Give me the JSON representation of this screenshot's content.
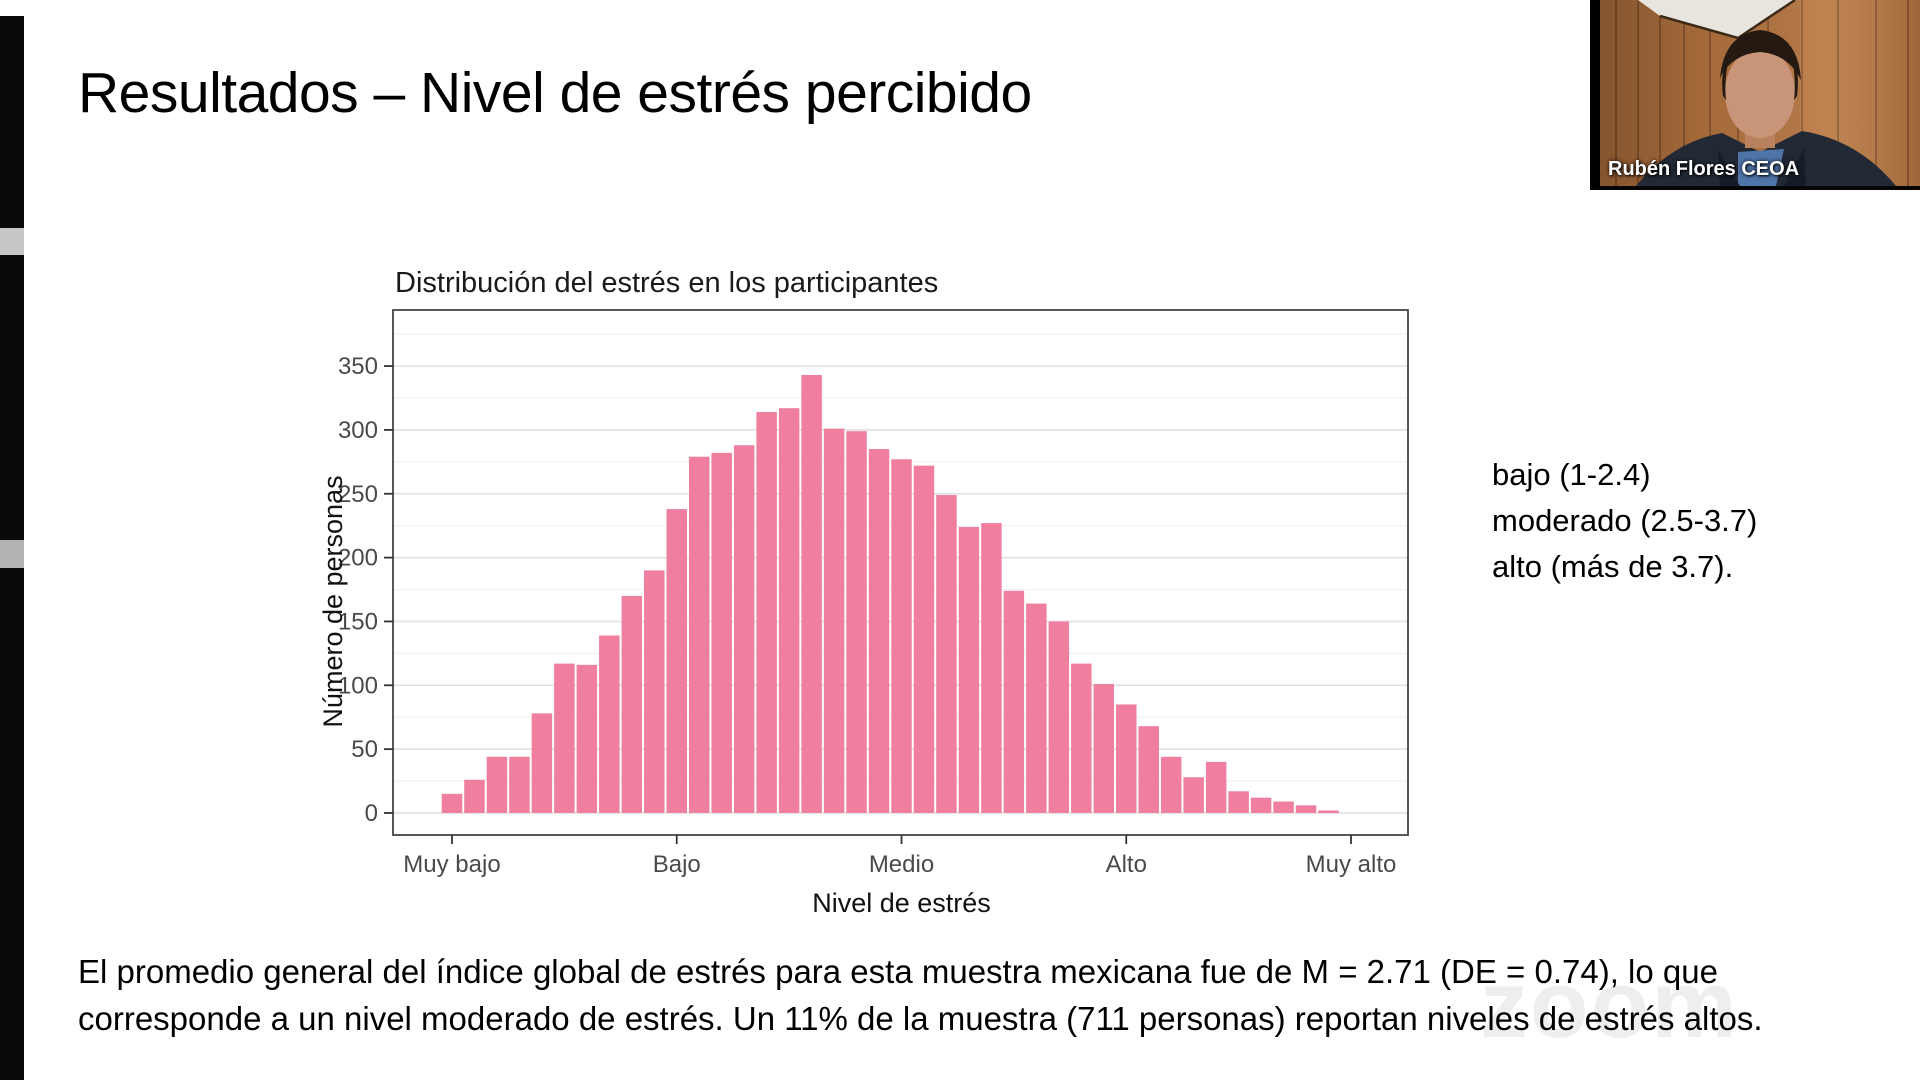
{
  "slide": {
    "title": "Resultados – Nivel de estrés percibido",
    "levels": [
      "bajo (1-2.4)",
      "moderado (2.5-3.7)",
      "alto (más de 3.7)."
    ],
    "paragraph_lines": [
      "El promedio general del índice global de estrés para esta muestra mexicana fue de M = 2.71 (DE = 0.74), lo que",
      "corresponde a un nivel moderado de estrés. Un 11% de la muestra (711 personas) reportan niveles de estrés altos."
    ],
    "watermark": "zoom"
  },
  "webcam": {
    "name_label": "Rubén Flores CEOA"
  },
  "chart_data": {
    "type": "bar",
    "title": "Distribución del estrés en los participantes",
    "xlabel": "Nivel de estrés",
    "ylabel": "Número de personas",
    "x_tick_labels": [
      "Muy bajo",
      "Bajo",
      "Medio",
      "Alto",
      "Muy alto"
    ],
    "x_tick_values": [
      1,
      2,
      3,
      4,
      5
    ],
    "y_ticks": [
      0,
      50,
      100,
      150,
      200,
      250,
      300,
      350
    ],
    "y_minor_ticks": [
      25,
      75,
      125,
      175,
      225,
      275,
      325,
      375
    ],
    "ylim": [
      0,
      394
    ],
    "xlim": [
      0.74,
      5.25
    ],
    "bin_width": 0.1,
    "bar_color": "#EF7E9F",
    "grid": true,
    "legend": "none",
    "x": [
      1.0,
      1.1,
      1.2,
      1.3,
      1.4,
      1.5,
      1.6,
      1.7,
      1.8,
      1.9,
      2.0,
      2.1,
      2.2,
      2.3,
      2.4,
      2.5,
      2.6,
      2.7,
      2.8,
      2.9,
      3.0,
      3.1,
      3.2,
      3.3,
      3.4,
      3.5,
      3.6,
      3.7,
      3.8,
      3.9,
      4.0,
      4.1,
      4.2,
      4.3,
      4.4,
      4.5,
      4.6,
      4.7,
      4.8,
      4.9
    ],
    "values": [
      15,
      26,
      44,
      44,
      78,
      117,
      116,
      139,
      170,
      190,
      238,
      279,
      282,
      288,
      314,
      317,
      343,
      301,
      299,
      285,
      277,
      272,
      249,
      224,
      227,
      174,
      164,
      150,
      117,
      101,
      85,
      68,
      44,
      28,
      40,
      17,
      12,
      9,
      6,
      2
    ]
  }
}
